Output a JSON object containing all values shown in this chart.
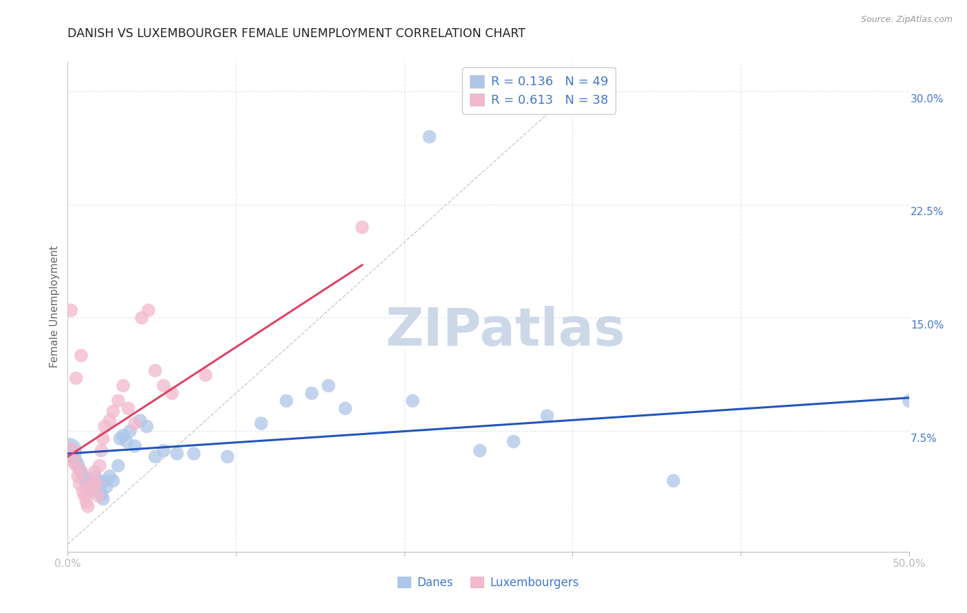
{
  "title": "DANISH VS LUXEMBOURGER FEMALE UNEMPLOYMENT CORRELATION CHART",
  "source": "Source: ZipAtlas.com",
  "ylabel": "Female Unemployment",
  "xlim": [
    0.0,
    0.5
  ],
  "ylim": [
    -0.005,
    0.32
  ],
  "yticks_right": [
    0.075,
    0.15,
    0.225,
    0.3
  ],
  "ytick_labels_right": [
    "7.5%",
    "15.0%",
    "22.5%",
    "30.0%"
  ],
  "legend_r_danes": "R = 0.136",
  "legend_n_danes": "N = 49",
  "legend_r_lux": "R = 0.613",
  "legend_n_lux": "N = 38",
  "legend_labels": [
    "Danes",
    "Luxembourgers"
  ],
  "danes_color": "#aec6e8",
  "lux_color": "#f2b8cc",
  "danes_line_color": "#2255bb",
  "lux_line_color": "#dd4466",
  "diag_line_color": "#ccb8b8",
  "background_color": "#ffffff",
  "grid_color": "#dde8f0",
  "title_color": "#222222",
  "axis_label_color": "#4477cc",
  "watermark_color": "#ccd8e8",
  "danes_scatter": [
    [
      0.002,
      0.063
    ],
    [
      0.003,
      0.06
    ],
    [
      0.004,
      0.058
    ],
    [
      0.005,
      0.055
    ],
    [
      0.006,
      0.053
    ],
    [
      0.007,
      0.05
    ],
    [
      0.008,
      0.048
    ],
    [
      0.009,
      0.045
    ],
    [
      0.01,
      0.043
    ],
    [
      0.011,
      0.04
    ],
    [
      0.012,
      0.042
    ],
    [
      0.013,
      0.038
    ],
    [
      0.014,
      0.035
    ],
    [
      0.015,
      0.04
    ],
    [
      0.016,
      0.045
    ],
    [
      0.017,
      0.038
    ],
    [
      0.018,
      0.042
    ],
    [
      0.019,
      0.037
    ],
    [
      0.02,
      0.033
    ],
    [
      0.021,
      0.03
    ],
    [
      0.022,
      0.042
    ],
    [
      0.023,
      0.038
    ],
    [
      0.025,
      0.045
    ],
    [
      0.027,
      0.042
    ],
    [
      0.03,
      0.052
    ],
    [
      0.031,
      0.07
    ],
    [
      0.033,
      0.072
    ],
    [
      0.035,
      0.068
    ],
    [
      0.037,
      0.075
    ],
    [
      0.04,
      0.065
    ],
    [
      0.043,
      0.082
    ],
    [
      0.047,
      0.078
    ],
    [
      0.052,
      0.058
    ],
    [
      0.057,
      0.062
    ],
    [
      0.065,
      0.06
    ],
    [
      0.075,
      0.06
    ],
    [
      0.095,
      0.058
    ],
    [
      0.115,
      0.08
    ],
    [
      0.13,
      0.095
    ],
    [
      0.145,
      0.1
    ],
    [
      0.155,
      0.105
    ],
    [
      0.165,
      0.09
    ],
    [
      0.205,
      0.095
    ],
    [
      0.245,
      0.062
    ],
    [
      0.265,
      0.068
    ],
    [
      0.285,
      0.085
    ],
    [
      0.36,
      0.042
    ],
    [
      0.215,
      0.27
    ],
    [
      0.5,
      0.095
    ]
  ],
  "lux_scatter": [
    [
      0.001,
      0.063
    ],
    [
      0.002,
      0.058
    ],
    [
      0.003,
      0.055
    ],
    [
      0.004,
      0.06
    ],
    [
      0.005,
      0.052
    ],
    [
      0.006,
      0.045
    ],
    [
      0.007,
      0.04
    ],
    [
      0.008,
      0.048
    ],
    [
      0.009,
      0.035
    ],
    [
      0.01,
      0.032
    ],
    [
      0.011,
      0.028
    ],
    [
      0.012,
      0.025
    ],
    [
      0.013,
      0.035
    ],
    [
      0.014,
      0.038
    ],
    [
      0.015,
      0.042
    ],
    [
      0.016,
      0.048
    ],
    [
      0.017,
      0.04
    ],
    [
      0.018,
      0.032
    ],
    [
      0.019,
      0.052
    ],
    [
      0.02,
      0.062
    ],
    [
      0.021,
      0.07
    ],
    [
      0.022,
      0.078
    ],
    [
      0.025,
      0.082
    ],
    [
      0.027,
      0.088
    ],
    [
      0.03,
      0.095
    ],
    [
      0.033,
      0.105
    ],
    [
      0.036,
      0.09
    ],
    [
      0.04,
      0.08
    ],
    [
      0.044,
      0.15
    ],
    [
      0.048,
      0.155
    ],
    [
      0.052,
      0.115
    ],
    [
      0.057,
      0.105
    ],
    [
      0.062,
      0.1
    ],
    [
      0.082,
      0.112
    ],
    [
      0.002,
      0.155
    ],
    [
      0.175,
      0.21
    ],
    [
      0.005,
      0.11
    ],
    [
      0.008,
      0.125
    ]
  ],
  "danes_line_x": [
    0.0,
    0.5
  ],
  "danes_line_y": [
    0.06,
    0.097
  ],
  "lux_line_x": [
    0.0,
    0.175
  ],
  "lux_line_y": [
    0.058,
    0.185
  ],
  "diag_line_x": [
    0.0,
    0.3
  ],
  "diag_line_y": [
    0.0,
    0.3
  ]
}
